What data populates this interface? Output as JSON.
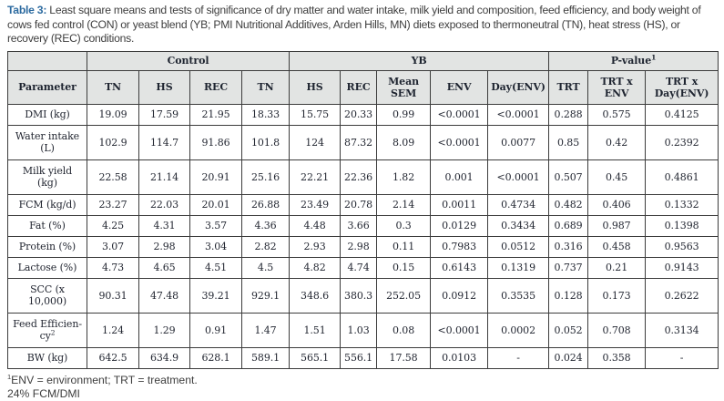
{
  "page": {
    "title_prefix": "Table 3:",
    "title_text": " Least square means and tests of significance of dry matter and water intake, milk yield and composition, feed efficiency, and body weight of cows fed control (CON) or yeast blend (YB; PMI Nutritional Additives, Arden Hills, MN) diets exposed to thermoneutral (TN), heat stress (HS), or recovery (REC) conditions."
  },
  "table": {
    "groups": [
      {
        "label": "",
        "sup": "",
        "span": 1
      },
      {
        "label": "Control",
        "sup": "",
        "span": 4
      },
      {
        "label": "YB",
        "sup": "",
        "span": 5
      },
      {
        "label": "P-value",
        "sup": "1",
        "span": 3
      }
    ],
    "columns": [
      "Parameter",
      "TN",
      "HS",
      "REC",
      "TN",
      "HS",
      "REC",
      "Mean\nSEM",
      "ENV",
      "Day(ENV)",
      "TRT",
      "TRT x\nENV",
      "TRT x\nDay(ENV)"
    ],
    "rows": [
      {
        "param": "DMI (kg)",
        "sup": "",
        "values": [
          "19.09",
          "17.59",
          "21.95",
          "18.33",
          "15.75",
          "20.33",
          "0.99",
          "<0.0001",
          "<0.0001",
          "0.288",
          "0.575",
          "0.4125"
        ]
      },
      {
        "param": "Water intake\n(L)",
        "sup": "",
        "values": [
          "102.9",
          "114.7",
          "91.86",
          "101.8",
          "124",
          "87.32",
          "8.09",
          "<0.0001",
          "0.0077",
          "0.85",
          "0.42",
          "0.2392"
        ]
      },
      {
        "param": "Milk yield\n(kg)",
        "sup": "",
        "values": [
          "22.58",
          "21.14",
          "20.91",
          "25.16",
          "22.21",
          "22.36",
          "1.82",
          "0.001",
          "<0.0001",
          "0.507",
          "0.45",
          "0.4861"
        ]
      },
      {
        "param": "FCM (kg/d)",
        "sup": "",
        "values": [
          "23.27",
          "22.03",
          "20.01",
          "26.88",
          "23.49",
          "20.78",
          "2.14",
          "0.0011",
          "0.4734",
          "0.482",
          "0.406",
          "0.1332"
        ]
      },
      {
        "param": "Fat (%)",
        "sup": "",
        "values": [
          "4.25",
          "4.31",
          "3.57",
          "4.36",
          "4.48",
          "3.66",
          "0.3",
          "0.0129",
          "0.3434",
          "0.689",
          "0.987",
          "0.1398"
        ]
      },
      {
        "param": "Protein (%)",
        "sup": "",
        "values": [
          "3.07",
          "2.98",
          "3.04",
          "2.82",
          "2.93",
          "2.98",
          "0.11",
          "0.7983",
          "0.0512",
          "0.316",
          "0.458",
          "0.9563"
        ]
      },
      {
        "param": "Lactose (%)",
        "sup": "",
        "values": [
          "4.73",
          "4.65",
          "4.51",
          "4.5",
          "4.82",
          "4.74",
          "0.15",
          "0.6143",
          "0.1319",
          "0.737",
          "0.21",
          "0.9143"
        ]
      },
      {
        "param": "SCC (x\n10,000)",
        "sup": "",
        "values": [
          "90.31",
          "47.48",
          "39.21",
          "929.1",
          "348.6",
          "380.3",
          "252.05",
          "0.0912",
          "0.3535",
          "0.128",
          "0.173",
          "0.2622"
        ]
      },
      {
        "param": "Feed Efficien-\ncy",
        "sup": "2",
        "values": [
          "1.24",
          "1.29",
          "0.91",
          "1.47",
          "1.51",
          "1.03",
          "0.08",
          "<0.0001",
          "0.0002",
          "0.052",
          "0.708",
          "0.3134"
        ]
      },
      {
        "param": "BW (kg)",
        "sup": "",
        "values": [
          "642.5",
          "634.9",
          "628.1",
          "589.1",
          "565.1",
          "556.1",
          "17.58",
          "0.0103",
          "-",
          "0.024",
          "0.358",
          "-"
        ]
      }
    ]
  },
  "footnotes": [
    {
      "sup": "1",
      "text": "ENV = environment; TRT = treatment."
    },
    {
      "sup": "",
      "text": "24% FCM/DMI"
    }
  ],
  "colors": {
    "title_accent": "#2d6ba0",
    "header_bg": "#e2e4e3",
    "border": "#3c3c3c",
    "body_text": "#232732",
    "caption_text": "#3e3e3e"
  }
}
